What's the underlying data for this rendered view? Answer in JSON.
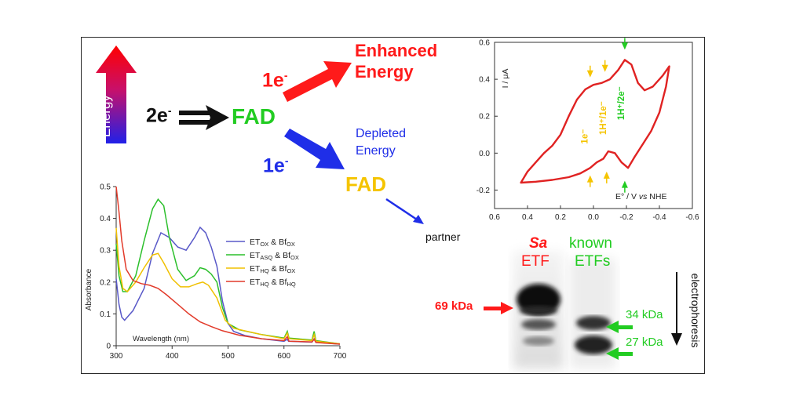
{
  "scheme": {
    "energy_label": "Energy",
    "two_e": "2e",
    "fad_main": "FAD",
    "one_e_top": "1e",
    "one_e_bottom": "1e",
    "enhanced": [
      "Enhanced",
      "Energy"
    ],
    "depleted": [
      "Depleted",
      "Energy"
    ],
    "fad_low": "FAD",
    "partner": "partner",
    "colors": {
      "red": "#ff1a1a",
      "green": "#22cc22",
      "blue": "#1f2ee8",
      "yellow": "#f5c400",
      "black": "#111111"
    }
  },
  "gel": {
    "sa": "Sa",
    "etf": "ETF",
    "known": "known",
    "etfs": "ETFs",
    "mw_69": "69 kDa",
    "mw_34": "34 kDa",
    "mw_27": "27 kDa",
    "direction": "electrophoresis"
  },
  "chart_data": [
    {
      "type": "line",
      "title": "",
      "xlabel": "Wavelength (nm)",
      "ylabel": "Absorbance",
      "xlim": [
        300,
        700
      ],
      "ylim": [
        0,
        0.5
      ],
      "xticks": [
        300,
        400,
        500,
        600,
        700
      ],
      "yticks": [
        0,
        0.1,
        0.2,
        0.3,
        0.4,
        0.5
      ],
      "legend": "right",
      "series": [
        {
          "name": "ETOX & BfOX",
          "name_parts": [
            "ET",
            "OX",
            " & Bf",
            "OX"
          ],
          "color": "#5858c8",
          "points": [
            [
              300,
              0.21
            ],
            [
              305,
              0.13
            ],
            [
              310,
              0.09
            ],
            [
              315,
              0.08
            ],
            [
              330,
              0.11
            ],
            [
              350,
              0.18
            ],
            [
              365,
              0.29
            ],
            [
              380,
              0.355
            ],
            [
              395,
              0.34
            ],
            [
              410,
              0.31
            ],
            [
              425,
              0.3
            ],
            [
              440,
              0.34
            ],
            [
              450,
              0.372
            ],
            [
              460,
              0.355
            ],
            [
              470,
              0.31
            ],
            [
              480,
              0.25
            ],
            [
              490,
              0.14
            ],
            [
              500,
              0.07
            ],
            [
              510,
              0.045
            ],
            [
              530,
              0.032
            ],
            [
              560,
              0.022
            ],
            [
              600,
              0.014
            ],
            [
              606,
              0.02
            ],
            [
              608,
              0.014
            ],
            [
              650,
              0.011
            ],
            [
              654,
              0.022
            ],
            [
              657,
              0.011
            ],
            [
              700,
              0.005
            ]
          ]
        },
        {
          "name": "ETASQ & BfOX",
          "name_parts": [
            "ET",
            "ASQ",
            " & Bf",
            "OX"
          ],
          "color": "#2bbf2b",
          "points": [
            [
              300,
              0.32
            ],
            [
              305,
              0.22
            ],
            [
              312,
              0.17
            ],
            [
              320,
              0.17
            ],
            [
              335,
              0.22
            ],
            [
              350,
              0.33
            ],
            [
              365,
              0.43
            ],
            [
              375,
              0.46
            ],
            [
              385,
              0.44
            ],
            [
              395,
              0.34
            ],
            [
              410,
              0.24
            ],
            [
              425,
              0.205
            ],
            [
              440,
              0.22
            ],
            [
              450,
              0.245
            ],
            [
              460,
              0.24
            ],
            [
              470,
              0.225
            ],
            [
              480,
              0.2
            ],
            [
              490,
              0.12
            ],
            [
              500,
              0.07
            ],
            [
              520,
              0.05
            ],
            [
              560,
              0.035
            ],
            [
              600,
              0.024
            ],
            [
              606,
              0.045
            ],
            [
              609,
              0.024
            ],
            [
              650,
              0.018
            ],
            [
              654,
              0.045
            ],
            [
              657,
              0.016
            ],
            [
              700,
              0.006
            ]
          ]
        },
        {
          "name": "ETHQ & BfOX",
          "name_parts": [
            "ET",
            "HQ",
            " & Bf",
            "OX"
          ],
          "color": "#f0c000",
          "points": [
            [
              300,
              0.37
            ],
            [
              305,
              0.25
            ],
            [
              312,
              0.18
            ],
            [
              320,
              0.17
            ],
            [
              335,
              0.2
            ],
            [
              350,
              0.245
            ],
            [
              365,
              0.285
            ],
            [
              375,
              0.29
            ],
            [
              385,
              0.26
            ],
            [
              400,
              0.21
            ],
            [
              415,
              0.185
            ],
            [
              430,
              0.185
            ],
            [
              445,
              0.195
            ],
            [
              455,
              0.2
            ],
            [
              465,
              0.19
            ],
            [
              480,
              0.15
            ],
            [
              495,
              0.08
            ],
            [
              510,
              0.055
            ],
            [
              560,
              0.035
            ],
            [
              600,
              0.022
            ],
            [
              606,
              0.04
            ],
            [
              609,
              0.022
            ],
            [
              650,
              0.016
            ],
            [
              654,
              0.035
            ],
            [
              657,
              0.014
            ],
            [
              700,
              0.006
            ]
          ]
        },
        {
          "name": "ETHQ & BfHQ",
          "name_parts": [
            "ET",
            "HQ",
            " & Bf",
            "HQ"
          ],
          "color": "#e23a2a",
          "points": [
            [
              300,
              0.5
            ],
            [
              305,
              0.42
            ],
            [
              310,
              0.33
            ],
            [
              318,
              0.24
            ],
            [
              330,
              0.205
            ],
            [
              345,
              0.195
            ],
            [
              360,
              0.19
            ],
            [
              375,
              0.18
            ],
            [
              390,
              0.16
            ],
            [
              410,
              0.13
            ],
            [
              430,
              0.1
            ],
            [
              450,
              0.075
            ],
            [
              470,
              0.06
            ],
            [
              490,
              0.047
            ],
            [
              520,
              0.033
            ],
            [
              560,
              0.022
            ],
            [
              600,
              0.016
            ],
            [
              606,
              0.028
            ],
            [
              609,
              0.014
            ],
            [
              650,
              0.012
            ],
            [
              654,
              0.02
            ],
            [
              657,
              0.01
            ],
            [
              700,
              0.005
            ]
          ]
        }
      ]
    },
    {
      "type": "line",
      "title": "",
      "xlabel": "E° / V vs NHE",
      "ylabel": "I / μA",
      "xlim": [
        0.6,
        -0.6
      ],
      "ylim": [
        -0.3,
        0.6
      ],
      "xticks": [
        0.6,
        0.4,
        0.2,
        0.0,
        -0.2,
        -0.4,
        -0.6
      ],
      "yticks": [
        -0.2,
        0.0,
        0.2,
        0.4,
        0.6
      ],
      "annotations": [
        "1e⁻",
        "1H⁺/1e⁻",
        "1H⁺/2e⁻"
      ],
      "series": [
        {
          "name": "",
          "color": "#e02222",
          "points": [
            [
              0.44,
              -0.16
            ],
            [
              0.4,
              -0.1
            ],
            [
              0.35,
              -0.05
            ],
            [
              0.3,
              0.0
            ],
            [
              0.25,
              0.04
            ],
            [
              0.2,
              0.1
            ],
            [
              0.15,
              0.2
            ],
            [
              0.1,
              0.29
            ],
            [
              0.05,
              0.345
            ],
            [
              0.0,
              0.37
            ],
            [
              -0.05,
              0.38
            ],
            [
              -0.1,
              0.4
            ],
            [
              -0.15,
              0.45
            ],
            [
              -0.19,
              0.505
            ],
            [
              -0.23,
              0.48
            ],
            [
              -0.27,
              0.38
            ],
            [
              -0.31,
              0.34
            ],
            [
              -0.36,
              0.36
            ],
            [
              -0.42,
              0.42
            ],
            [
              -0.46,
              0.47
            ],
            [
              -0.44,
              0.36
            ],
            [
              -0.4,
              0.22
            ],
            [
              -0.35,
              0.12
            ],
            [
              -0.3,
              0.05
            ],
            [
              -0.25,
              -0.02
            ],
            [
              -0.21,
              -0.08
            ],
            [
              -0.17,
              -0.05
            ],
            [
              -0.13,
              0.0
            ],
            [
              -0.09,
              0.01
            ],
            [
              -0.06,
              -0.03
            ],
            [
              -0.02,
              -0.05
            ],
            [
              0.02,
              -0.08
            ],
            [
              0.08,
              -0.11
            ],
            [
              0.15,
              -0.13
            ],
            [
              0.25,
              -0.145
            ],
            [
              0.35,
              -0.155
            ],
            [
              0.44,
              -0.16
            ]
          ]
        }
      ]
    }
  ]
}
